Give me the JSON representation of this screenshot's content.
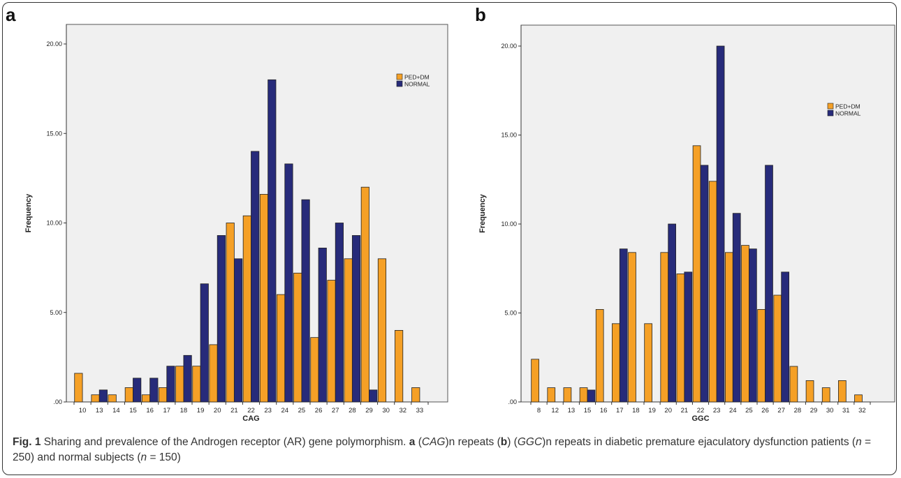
{
  "chart_data": [
    {
      "type": "bar",
      "panel_label": "a",
      "xlabel": "CAG",
      "ylabel": "Frequency",
      "ylim": [
        0,
        21
      ],
      "yticks": [
        "20.00",
        "15.00",
        "10.00",
        "5.00",
        ".00"
      ],
      "ytick_values": [
        20,
        15,
        10,
        5,
        0
      ],
      "legend_placement": "top-right",
      "grid": false,
      "categories": [
        "10",
        "13",
        "14",
        "15",
        "16",
        "17",
        "18",
        "19",
        "20",
        "21",
        "22",
        "23",
        "24",
        "25",
        "26",
        "27",
        "28",
        "29",
        "30",
        "32",
        "33"
      ],
      "series": [
        {
          "name": "PED+DM",
          "color": "#F5A026",
          "values": [
            1.6,
            0.4,
            0.4,
            0.8,
            0.4,
            0.8,
            2.0,
            2.0,
            3.2,
            10.0,
            10.4,
            11.6,
            6.0,
            7.2,
            3.6,
            6.8,
            8.0,
            12.0,
            8.0,
            4.0,
            0.8
          ]
        },
        {
          "name": "NORMAL",
          "color": "#272B7A",
          "values": [
            0,
            0.67,
            0,
            1.33,
            1.33,
            2.0,
            2.6,
            6.6,
            9.3,
            8.0,
            14.0,
            18.0,
            13.3,
            11.3,
            8.6,
            10.0,
            9.3,
            0.67,
            0,
            0,
            0
          ]
        }
      ]
    },
    {
      "type": "bar",
      "panel_label": "b",
      "xlabel": "GGC",
      "ylabel": "Frequency",
      "ylim": [
        0,
        20.5
      ],
      "yticks": [
        "20.00",
        "15.00",
        "10.00",
        "5.00",
        ".00"
      ],
      "ytick_values": [
        20,
        15,
        10,
        5,
        0
      ],
      "legend_placement": "top-right",
      "grid": false,
      "categories": [
        "8",
        "12",
        "13",
        "15",
        "16",
        "17",
        "18",
        "19",
        "20",
        "21",
        "22",
        "23",
        "24",
        "25",
        "26",
        "27",
        "28",
        "29",
        "30",
        "31",
        "32"
      ],
      "series": [
        {
          "name": "PED+DM",
          "color": "#F5A026",
          "values": [
            2.4,
            0.8,
            0.8,
            0.8,
            5.2,
            4.4,
            8.4,
            4.4,
            8.4,
            7.2,
            14.4,
            12.4,
            8.4,
            8.8,
            5.2,
            6.0,
            2.0,
            1.2,
            0.8,
            1.2,
            0.4
          ]
        },
        {
          "name": "NORMAL",
          "color": "#272B7A",
          "values": [
            0,
            0,
            0,
            0.67,
            0,
            8.6,
            0,
            0,
            10.0,
            7.3,
            13.3,
            20.0,
            10.6,
            8.6,
            13.3,
            7.3,
            0,
            0,
            0,
            0,
            0
          ]
        }
      ]
    }
  ],
  "caption": {
    "fig_label": "Fig. 1",
    "t1": " Sharing and prevalence of the Androgen receptor (AR) gene polymorphism. ",
    "a_label": "a",
    "t2": " (",
    "cag": "CAG",
    "t3": ")n repeats (",
    "b_label": "b",
    "t4": ") (",
    "ggc": "GGC",
    "t5": ")n repeats in diabetic premature ejaculatory dysfunction patients (",
    "n1_var": "n",
    "n1_val": " = 250) and normal subjects (",
    "n2_var": "n",
    "n2_val": " = 150)"
  }
}
